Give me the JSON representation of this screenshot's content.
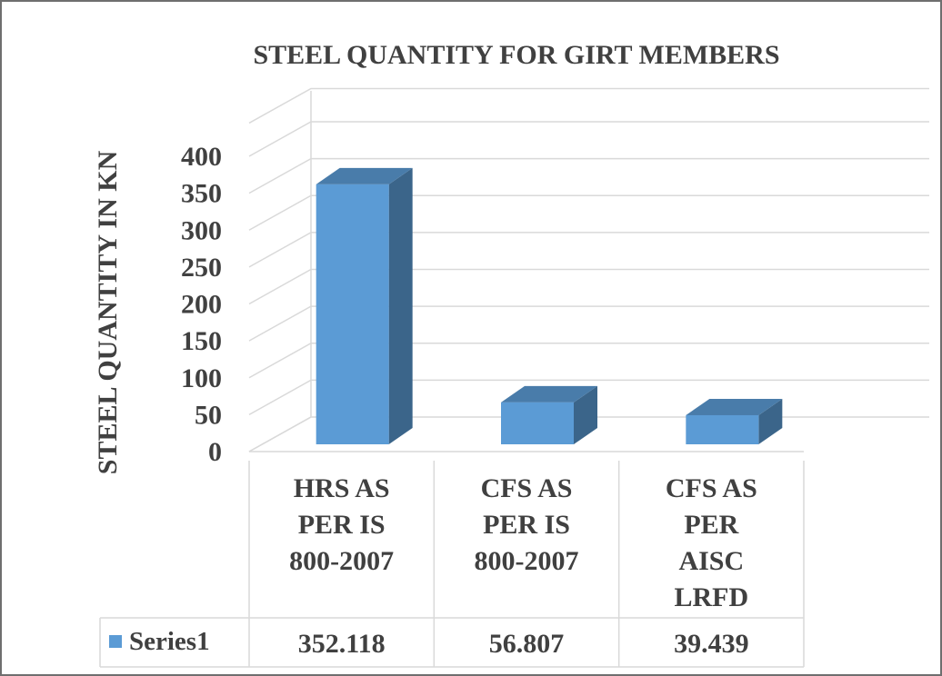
{
  "chart_data": {
    "type": "bar",
    "title": "STEEL  QUANTITY  FOR GIRT MEMBERS",
    "ylabel": "STEEL QUANTITY  IN KN",
    "xlabel": "",
    "ylim": [
      0,
      400
    ],
    "yticks": [
      0,
      50,
      100,
      150,
      200,
      250,
      300,
      350,
      400
    ],
    "grid": true,
    "style": "3d-column",
    "categories": [
      [
        "HRS AS",
        "PER IS",
        "800-2007"
      ],
      [
        "CFS AS",
        "PER IS",
        "800-2007"
      ],
      [
        "CFS AS",
        "PER",
        "AISC",
        "LRFD"
      ]
    ],
    "series": [
      {
        "name": "Series1",
        "values": [
          352.118,
          56.807,
          39.439
        ],
        "value_labels": [
          "352.118",
          "56.807",
          "39.439"
        ],
        "color": "#5b9bd5"
      }
    ],
    "legend": "data-table-bottom"
  }
}
